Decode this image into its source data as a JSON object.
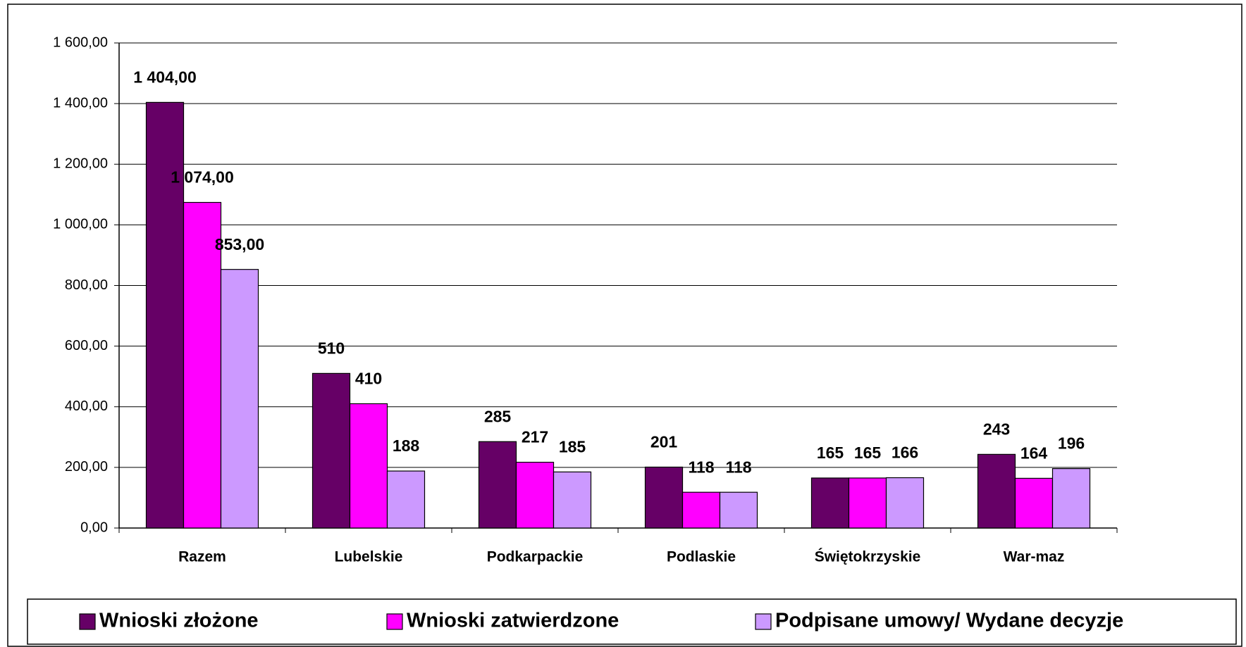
{
  "chart_data": {
    "type": "bar",
    "categories": [
      "Razem",
      "Lubelskie",
      "Podkarpackie",
      "Podlaskie",
      "Świętokrzyskie",
      "War-maz"
    ],
    "series": [
      {
        "name": "Wnioski złożone",
        "color": "#660066",
        "values": [
          1404,
          510,
          285,
          201,
          165,
          243
        ],
        "value_labels": [
          "1 404,00",
          "510",
          "285",
          "201",
          "165",
          "243"
        ]
      },
      {
        "name": "Wnioski zatwierdzone",
        "color": "#ff00ff",
        "values": [
          1074,
          410,
          217,
          118,
          165,
          164
        ],
        "value_labels": [
          "1 074,00",
          "410",
          "217",
          "118",
          "165",
          "164"
        ]
      },
      {
        "name": "Podpisane umowy/ Wydane decyzje",
        "color": "#cc99ff",
        "values": [
          853,
          188,
          185,
          118,
          166,
          196
        ],
        "value_labels": [
          "853,00",
          "188",
          "185",
          "118",
          "166",
          "196"
        ]
      }
    ],
    "ylim": [
      0,
      1600
    ],
    "yticks": [
      {
        "value": 0,
        "label": "0,00"
      },
      {
        "value": 200,
        "label": "200,00"
      },
      {
        "value": 400,
        "label": "400,00"
      },
      {
        "value": 600,
        "label": "600,00"
      },
      {
        "value": 800,
        "label": "800,00"
      },
      {
        "value": 1000,
        "label": "1 000,00"
      },
      {
        "value": 1200,
        "label": "1 200,00"
      },
      {
        "value": 1400,
        "label": "1 400,00"
      },
      {
        "value": 1600,
        "label": "1 600,00"
      }
    ],
    "grid": true,
    "legend": "bottom"
  }
}
